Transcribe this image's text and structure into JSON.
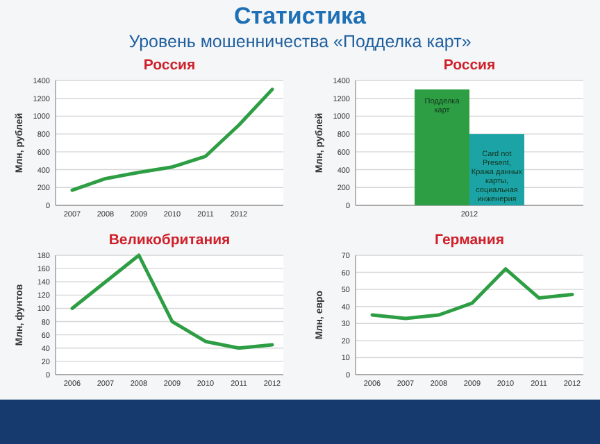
{
  "chart_data": [
    {
      "type": "other",
      "title": "Статистика",
      "subtitle": "Уровень мошенничества «Подделка карт»"
    },
    {
      "type": "line",
      "title": "Россия",
      "ylabel": "Млн, рублей",
      "categories": [
        "2007",
        "2008",
        "2009",
        "2010",
        "2011",
        "2012",
        null
      ],
      "ylim": [
        0,
        1400
      ],
      "yticks": [
        0,
        200,
        400,
        600,
        800,
        1000,
        1200,
        1400
      ],
      "grid": "y",
      "series": [
        {
          "color": "#2e9e44",
          "values": [
            170,
            300,
            370,
            430,
            550,
            900,
            1300
          ]
        }
      ]
    },
    {
      "type": "bar",
      "title": "Россия",
      "ylabel": "Млн, рублей",
      "categories": [
        "2012"
      ],
      "ylim": [
        0,
        1400
      ],
      "yticks": [
        0,
        200,
        400,
        600,
        800,
        1000,
        1200,
        1400
      ],
      "grid": "y",
      "series": [
        {
          "name": "Подделка карт",
          "color": "#2e9e44",
          "values": [
            1300
          ]
        },
        {
          "name": "Card not Present, Кража данных карты, социальная инженерия",
          "color": "#1ca3a6",
          "values": [
            800
          ]
        }
      ]
    },
    {
      "type": "line",
      "title": "Великобритания",
      "ylabel": "Млн, фунтов",
      "categories": [
        "2006",
        "2007",
        "2008",
        "2009",
        "2010",
        "2011",
        "2012"
      ],
      "ylim": [
        0,
        180
      ],
      "yticks": [
        0,
        20,
        40,
        60,
        80,
        100,
        120,
        140,
        160,
        180
      ],
      "grid": "y",
      "series": [
        {
          "color": "#2e9e44",
          "values": [
            100,
            140,
            180,
            80,
            50,
            40,
            45
          ]
        }
      ]
    },
    {
      "type": "line",
      "title": "Германия",
      "ylabel": "Млн, евро",
      "categories": [
        "2006",
        "2007",
        "2008",
        "2009",
        "2010",
        "2011",
        "2012"
      ],
      "ylim": [
        0,
        70
      ],
      "yticks": [
        0,
        10,
        20,
        30,
        40,
        50,
        60,
        70
      ],
      "grid": "y",
      "series": [
        {
          "color": "#2e9e44",
          "values": [
            35,
            33,
            35,
            42,
            62,
            45,
            47
          ]
        }
      ]
    }
  ]
}
